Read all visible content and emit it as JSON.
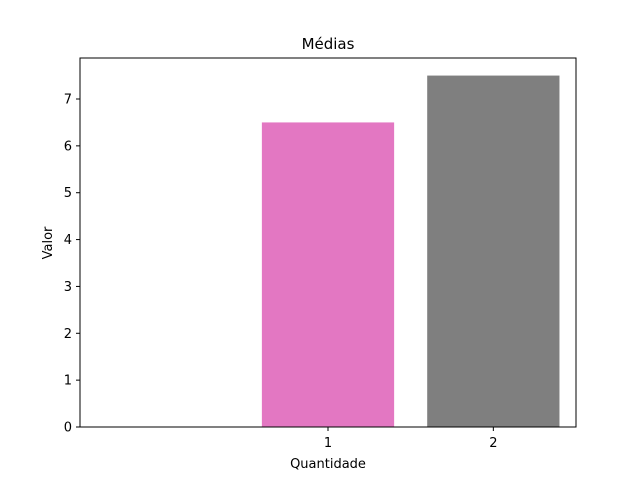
{
  "chart_data": {
    "type": "bar",
    "title": "Médias",
    "xlabel": "Quantidade",
    "ylabel": "Valor",
    "categories": [
      "1",
      "2"
    ],
    "x": [
      1,
      2
    ],
    "values": [
      6.5,
      7.5
    ],
    "colors": [
      "#e377c2",
      "#7f7f7f"
    ],
    "xlim": [
      -0.5,
      2.5
    ],
    "ylim": [
      0,
      7.875
    ],
    "yticks": [
      0,
      1,
      2,
      3,
      4,
      5,
      6,
      7
    ],
    "xticks": [
      1,
      2
    ],
    "grid": false,
    "legend": "none"
  }
}
